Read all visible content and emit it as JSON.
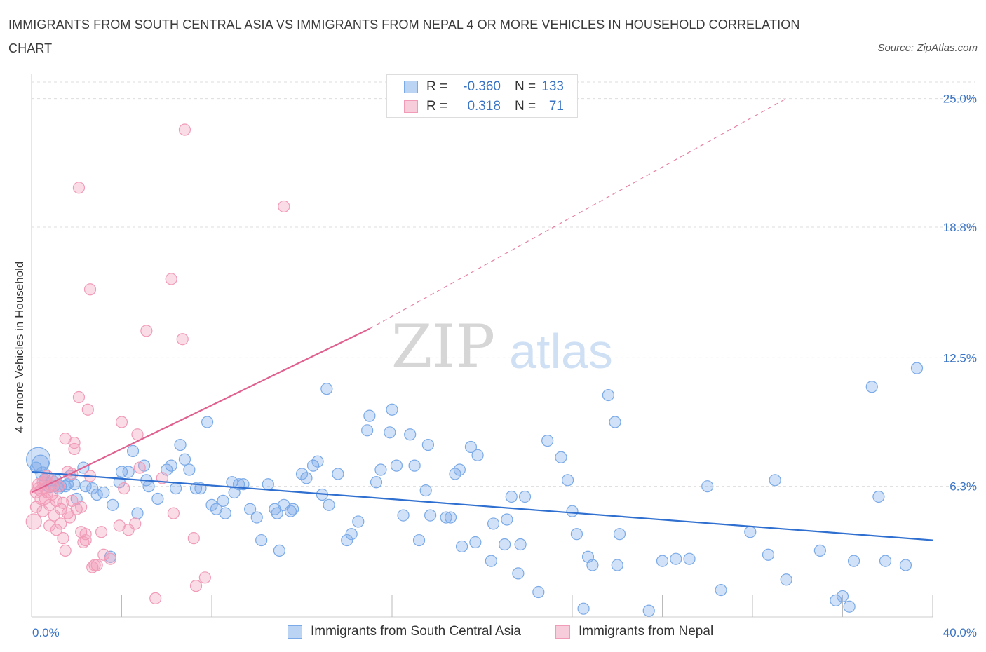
{
  "title": "IMMIGRANTS FROM SOUTH CENTRAL ASIA VS IMMIGRANTS FROM NEPAL 4 OR MORE VEHICLES IN HOUSEHOLD CORRELATION CHART",
  "source": "Source: ZipAtlas.com",
  "watermark": {
    "zip": "ZIP",
    "atlas": "atlas"
  },
  "stats": [
    {
      "r_label": "R =",
      "r_value": "-0.360",
      "n_label": "N =",
      "n_value": "133",
      "color": "#7aaae8"
    },
    {
      "r_label": "R =",
      "r_value": "0.318",
      "n_label": "N =",
      "n_value": "71",
      "color": "#f19bb7"
    }
  ],
  "legend": [
    "Immigrants from South Central Asia",
    "Immigrants from Nepal"
  ],
  "colors": {
    "blue_fill": "rgba(122,170,232,0.35)",
    "blue_stroke": "#7aaae8",
    "blue_line": "#2f6fd0",
    "pink_fill": "rgba(241,155,183,0.35)",
    "pink_stroke": "#f19bb7",
    "pink_line": "#e0608f",
    "grid": "#dddddd",
    "axis_label": "#3a74c4"
  },
  "chart_data": {
    "type": "scatter",
    "title": "IMMIGRANTS FROM SOUTH CENTRAL ASIA VS IMMIGRANTS FROM NEPAL 4 OR MORE VEHICLES IN HOUSEHOLD CORRELATION CHART",
    "xlabel": "",
    "ylabel": "4 or more Vehicles in Household",
    "xlim": [
      0,
      40
    ],
    "ylim": [
      0,
      25.8
    ],
    "x_tick_labels": [
      {
        "value": 0,
        "label": "0.0%"
      },
      {
        "value": 40,
        "label": "40.0%"
      }
    ],
    "y_ticks": [
      {
        "value": 6.3,
        "label": "6.3%"
      },
      {
        "value": 12.5,
        "label": "12.5%"
      },
      {
        "value": 18.8,
        "label": "18.8%"
      },
      {
        "value": 25.0,
        "label": "25.0%"
      }
    ],
    "series": [
      {
        "name": "Immigrants from South Central Asia",
        "trend": {
          "x": [
            0,
            40
          ],
          "y": [
            7.0,
            3.7
          ]
        },
        "points": [
          [
            0.3,
            7.6
          ],
          [
            0.4,
            7.4
          ],
          [
            0.5,
            6.9
          ],
          [
            0.6,
            6.6
          ],
          [
            0.8,
            6.3
          ],
          [
            0.9,
            6.6
          ],
          [
            1.0,
            6.3
          ],
          [
            1.1,
            6.6
          ],
          [
            1.2,
            6.2
          ],
          [
            1.3,
            6.3
          ],
          [
            1.5,
            6.3
          ],
          [
            1.6,
            6.4
          ],
          [
            1.9,
            6.4
          ],
          [
            2.0,
            5.7
          ],
          [
            2.3,
            7.2
          ],
          [
            2.4,
            6.3
          ],
          [
            2.7,
            6.2
          ],
          [
            2.9,
            5.9
          ],
          [
            3.2,
            6.0
          ],
          [
            3.5,
            2.9
          ],
          [
            3.6,
            5.4
          ],
          [
            3.9,
            6.5
          ],
          [
            4.0,
            7.0
          ],
          [
            4.3,
            7.0
          ],
          [
            4.5,
            8.0
          ],
          [
            4.7,
            5.0
          ],
          [
            5.0,
            7.3
          ],
          [
            5.1,
            6.6
          ],
          [
            5.2,
            6.3
          ],
          [
            5.6,
            5.7
          ],
          [
            6.0,
            7.1
          ],
          [
            6.2,
            7.3
          ],
          [
            6.4,
            6.2
          ],
          [
            6.6,
            8.3
          ],
          [
            6.8,
            7.6
          ],
          [
            7.0,
            7.1
          ],
          [
            7.3,
            6.2
          ],
          [
            7.5,
            6.2
          ],
          [
            7.8,
            9.4
          ],
          [
            8.0,
            5.4
          ],
          [
            8.2,
            5.2
          ],
          [
            8.5,
            5.6
          ],
          [
            8.6,
            5.0
          ],
          [
            8.9,
            6.5
          ],
          [
            9.0,
            6.0
          ],
          [
            9.2,
            6.4
          ],
          [
            9.4,
            6.4
          ],
          [
            9.7,
            5.2
          ],
          [
            10.0,
            4.8
          ],
          [
            10.2,
            3.7
          ],
          [
            10.5,
            6.4
          ],
          [
            10.8,
            5.2
          ],
          [
            10.9,
            5.0
          ],
          [
            11.0,
            3.2
          ],
          [
            11.2,
            5.4
          ],
          [
            11.5,
            5.1
          ],
          [
            11.6,
            5.2
          ],
          [
            12.0,
            6.9
          ],
          [
            12.2,
            6.7
          ],
          [
            12.5,
            7.3
          ],
          [
            12.7,
            7.5
          ],
          [
            12.9,
            5.9
          ],
          [
            13.1,
            11.0
          ],
          [
            13.2,
            5.4
          ],
          [
            13.6,
            6.9
          ],
          [
            14.0,
            3.7
          ],
          [
            14.2,
            4.0
          ],
          [
            14.5,
            4.6
          ],
          [
            14.9,
            9.0
          ],
          [
            15.0,
            9.7
          ],
          [
            15.3,
            6.5
          ],
          [
            15.5,
            7.1
          ],
          [
            15.9,
            8.9
          ],
          [
            16.0,
            10.0
          ],
          [
            16.2,
            7.3
          ],
          [
            16.5,
            4.9
          ],
          [
            16.8,
            8.8
          ],
          [
            17.0,
            7.3
          ],
          [
            17.2,
            3.7
          ],
          [
            17.5,
            6.1
          ],
          [
            17.6,
            8.3
          ],
          [
            17.7,
            4.9
          ],
          [
            18.4,
            4.8
          ],
          [
            18.6,
            4.8
          ],
          [
            18.8,
            6.9
          ],
          [
            19.0,
            7.1
          ],
          [
            19.1,
            3.4
          ],
          [
            19.5,
            8.2
          ],
          [
            19.7,
            3.6
          ],
          [
            19.8,
            7.8
          ],
          [
            20.4,
            2.7
          ],
          [
            20.5,
            4.5
          ],
          [
            21.0,
            3.5
          ],
          [
            21.1,
            4.7
          ],
          [
            21.3,
            5.8
          ],
          [
            21.6,
            2.1
          ],
          [
            21.7,
            3.5
          ],
          [
            21.9,
            5.8
          ],
          [
            22.5,
            1.2
          ],
          [
            22.9,
            8.5
          ],
          [
            23.5,
            7.7
          ],
          [
            23.8,
            6.6
          ],
          [
            24.0,
            5.1
          ],
          [
            24.2,
            4.0
          ],
          [
            24.5,
            0.4
          ],
          [
            24.7,
            2.9
          ],
          [
            24.9,
            2.5
          ],
          [
            25.6,
            10.7
          ],
          [
            25.9,
            9.4
          ],
          [
            26.0,
            2.5
          ],
          [
            26.1,
            4.0
          ],
          [
            27.4,
            0.3
          ],
          [
            28.0,
            2.7
          ],
          [
            28.6,
            2.8
          ],
          [
            29.2,
            2.8
          ],
          [
            30.0,
            6.3
          ],
          [
            30.6,
            1.3
          ],
          [
            31.9,
            4.1
          ],
          [
            32.7,
            3.0
          ],
          [
            33.0,
            6.6
          ],
          [
            33.5,
            1.8
          ],
          [
            35.0,
            3.2
          ],
          [
            35.7,
            0.8
          ],
          [
            36.0,
            1.0
          ],
          [
            36.3,
            0.5
          ],
          [
            36.5,
            2.7
          ],
          [
            37.3,
            11.1
          ],
          [
            37.6,
            5.8
          ],
          [
            37.9,
            2.7
          ],
          [
            38.8,
            2.5
          ],
          [
            39.3,
            12.0
          ],
          [
            0.2,
            7.2
          ],
          [
            1.7,
            6.8
          ]
        ],
        "sizes": [
          34,
          24,
          20,
          18,
          18,
          16,
          16,
          16,
          16,
          16,
          16,
          16,
          16,
          16,
          16,
          16,
          16,
          16,
          16,
          16,
          16,
          16,
          16,
          16,
          16,
          16,
          16,
          16,
          16,
          16,
          16,
          16,
          16,
          16,
          16,
          16,
          16,
          16,
          16,
          16,
          16,
          16,
          16,
          16,
          16,
          16,
          16,
          16,
          16,
          16,
          16,
          16,
          16,
          16,
          16,
          16,
          16,
          16,
          16,
          16,
          16,
          16,
          16,
          16,
          16,
          16,
          16,
          16,
          16,
          16,
          16,
          16,
          16,
          16,
          16,
          16,
          16,
          16,
          16,
          16,
          16,
          16,
          16,
          16,
          16,
          16,
          16,
          16,
          16,
          16,
          16,
          16,
          16,
          16,
          16,
          16,
          16,
          16,
          16,
          16,
          16,
          16,
          16,
          16,
          16,
          16,
          16,
          16,
          16,
          16,
          16,
          16,
          16,
          16,
          16,
          16,
          16,
          16,
          16,
          16,
          16,
          16,
          16,
          16,
          16,
          16,
          16,
          16,
          16,
          16,
          16,
          16,
          16
        ]
      },
      {
        "name": "Immigrants from Nepal",
        "trend": {
          "x": [
            0,
            15
          ],
          "y": [
            6.0,
            13.9
          ]
        },
        "trend_extension": {
          "x": [
            15,
            33.5
          ],
          "y": [
            13.9,
            25.0
          ]
        },
        "points": [
          [
            0.1,
            4.6
          ],
          [
            0.2,
            6.0
          ],
          [
            0.2,
            5.3
          ],
          [
            0.3,
            6.4
          ],
          [
            0.4,
            6.1
          ],
          [
            0.4,
            5.7
          ],
          [
            0.5,
            6.5
          ],
          [
            0.5,
            5.1
          ],
          [
            0.6,
            6.2
          ],
          [
            0.6,
            5.7
          ],
          [
            0.7,
            6.8
          ],
          [
            0.7,
            6.0
          ],
          [
            0.8,
            4.4
          ],
          [
            0.8,
            5.4
          ],
          [
            0.9,
            6.3
          ],
          [
            0.9,
            5.9
          ],
          [
            1.0,
            4.9
          ],
          [
            1.0,
            6.5
          ],
          [
            1.1,
            4.2
          ],
          [
            1.1,
            5.6
          ],
          [
            1.2,
            6.3
          ],
          [
            1.3,
            5.2
          ],
          [
            1.3,
            4.5
          ],
          [
            1.4,
            3.8
          ],
          [
            1.4,
            5.5
          ],
          [
            1.5,
            3.2
          ],
          [
            1.5,
            8.6
          ],
          [
            1.6,
            7.0
          ],
          [
            1.6,
            5.0
          ],
          [
            1.7,
            4.8
          ],
          [
            1.8,
            5.6
          ],
          [
            1.8,
            6.9
          ],
          [
            1.9,
            8.4
          ],
          [
            1.9,
            8.1
          ],
          [
            2.0,
            5.2
          ],
          [
            2.1,
            20.7
          ],
          [
            2.1,
            10.6
          ],
          [
            2.2,
            4.1
          ],
          [
            2.2,
            5.3
          ],
          [
            2.3,
            3.6
          ],
          [
            2.4,
            4.0
          ],
          [
            2.4,
            3.7
          ],
          [
            2.5,
            10.0
          ],
          [
            2.6,
            6.8
          ],
          [
            2.6,
            15.8
          ],
          [
            2.7,
            2.4
          ],
          [
            2.8,
            2.5
          ],
          [
            2.9,
            2.5
          ],
          [
            3.1,
            4.1
          ],
          [
            3.2,
            3.0
          ],
          [
            3.5,
            2.8
          ],
          [
            3.9,
            4.4
          ],
          [
            4.0,
            9.4
          ],
          [
            4.1,
            6.2
          ],
          [
            4.3,
            4.2
          ],
          [
            4.6,
            4.5
          ],
          [
            4.7,
            8.8
          ],
          [
            4.8,
            7.2
          ],
          [
            5.1,
            13.8
          ],
          [
            5.5,
            0.9
          ],
          [
            5.8,
            6.7
          ],
          [
            6.2,
            16.3
          ],
          [
            6.3,
            5.0
          ],
          [
            6.7,
            13.4
          ],
          [
            6.8,
            23.5
          ],
          [
            7.2,
            3.8
          ],
          [
            7.3,
            1.5
          ],
          [
            7.7,
            1.9
          ],
          [
            11.2,
            19.8
          ],
          [
            0.3,
            6.2
          ],
          [
            0.6,
            6.6
          ]
        ],
        "sizes": [
          22,
          16,
          16,
          16,
          16,
          16,
          16,
          16,
          16,
          16,
          16,
          16,
          16,
          16,
          16,
          16,
          16,
          16,
          16,
          16,
          16,
          16,
          16,
          16,
          16,
          16,
          16,
          16,
          16,
          16,
          16,
          16,
          16,
          16,
          16,
          16,
          16,
          16,
          16,
          16,
          16,
          16,
          16,
          16,
          16,
          16,
          16,
          16,
          16,
          16,
          16,
          16,
          16,
          16,
          16,
          16,
          16,
          16,
          16,
          16,
          16,
          16,
          16,
          16,
          16,
          16,
          16,
          16,
          16,
          16,
          16
        ]
      }
    ],
    "grid": true,
    "legend_position": "bottom-center"
  }
}
